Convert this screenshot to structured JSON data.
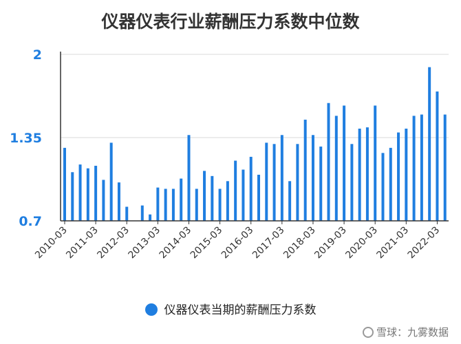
{
  "chart_data": {
    "type": "bar",
    "title": "仪器仪表行业薪酬压力系数中位数",
    "series": [
      {
        "name": "仪器仪表当期的薪酬压力系数",
        "color": "#1f7ee0",
        "values": [
          1.27,
          1.08,
          1.14,
          1.11,
          1.13,
          1.02,
          1.31,
          1.0,
          0.81,
          null,
          0.82,
          0.75,
          0.96,
          0.95,
          0.95,
          1.03,
          1.37,
          0.95,
          1.09,
          1.05,
          0.95,
          1.01,
          1.17,
          1.1,
          1.2,
          1.06,
          1.31,
          1.3,
          1.37,
          1.01,
          1.3,
          1.49,
          1.37,
          1.28,
          1.62,
          1.52,
          1.6,
          1.3,
          1.42,
          1.43,
          1.6,
          1.23,
          1.27,
          1.39,
          1.42,
          1.52,
          1.53,
          1.9,
          1.71,
          1.53
        ]
      }
    ],
    "x_tick_labels": [
      "2010-03",
      "2011-03",
      "2012-03",
      "2013-03",
      "2014-03",
      "2015-03",
      "2016-03",
      "2017-03",
      "2018-03",
      "2019-03",
      "2020-03",
      "2021-03",
      "2022-03"
    ],
    "y_ticks": [
      "0.7",
      "1.35",
      "2"
    ],
    "ylim": [
      0.7,
      2.0
    ],
    "grid": "horizontal",
    "legend_position": "bottom"
  },
  "watermark": "雪球：九雾数据"
}
